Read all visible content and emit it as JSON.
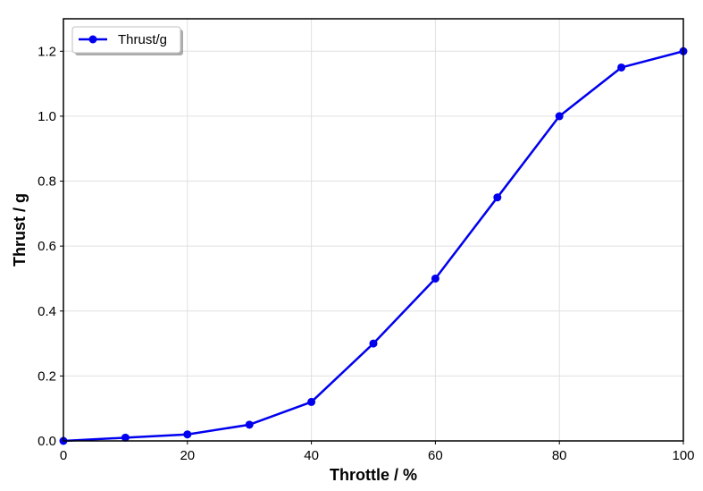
{
  "chart_data": {
    "type": "line",
    "x": [
      0,
      10,
      20,
      30,
      40,
      50,
      60,
      70,
      80,
      90,
      100
    ],
    "series": [
      {
        "name": "Thrust/g",
        "values": [
          0.0,
          0.01,
          0.02,
          0.05,
          0.12,
          0.3,
          0.5,
          0.75,
          1.0,
          1.15,
          1.2
        ],
        "color": "#0000ee",
        "marker": "circle"
      }
    ],
    "title": "",
    "xlabel": "Throttle / %",
    "ylabel": "Thrust / g",
    "xlim": [
      0,
      100
    ],
    "ylim": [
      0,
      1.3
    ],
    "xticks": [
      0,
      20,
      40,
      60,
      80,
      100
    ],
    "yticks": [
      0.0,
      0.2,
      0.4,
      0.6,
      0.8,
      1.0,
      1.2
    ],
    "xtick_labels": [
      "0",
      "20",
      "40",
      "60",
      "80",
      "100"
    ],
    "ytick_labels": [
      "0.0",
      "0.2",
      "0.4",
      "0.6",
      "0.8",
      "1.0",
      "1.2"
    ],
    "grid": true,
    "legend_position": "top-left"
  }
}
